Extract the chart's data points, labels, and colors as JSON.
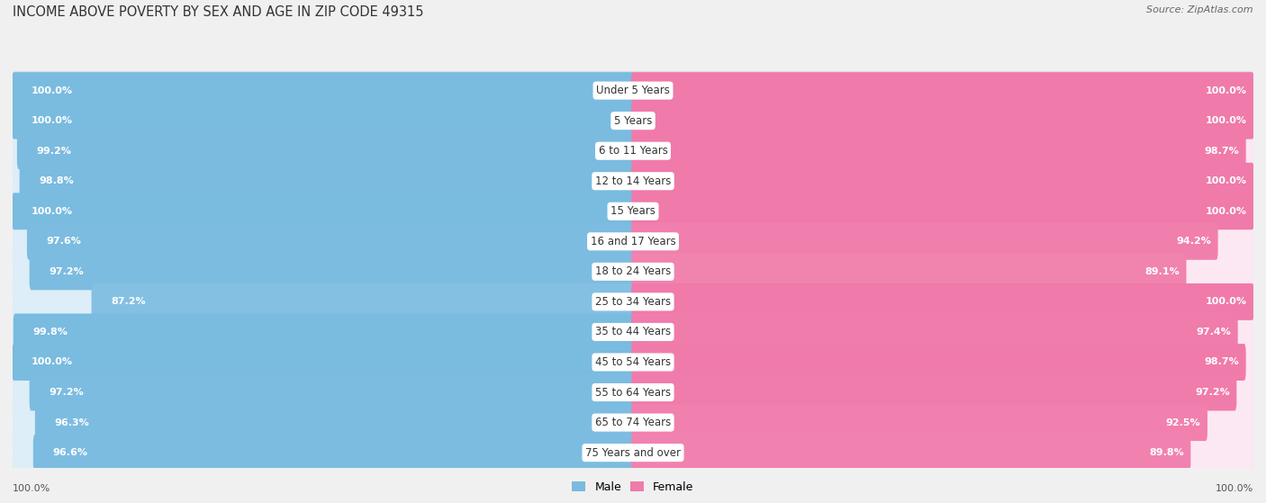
{
  "title": "INCOME ABOVE POVERTY BY SEX AND AGE IN ZIP CODE 49315",
  "source": "Source: ZipAtlas.com",
  "categories": [
    "Under 5 Years",
    "5 Years",
    "6 to 11 Years",
    "12 to 14 Years",
    "15 Years",
    "16 and 17 Years",
    "18 to 24 Years",
    "25 to 34 Years",
    "35 to 44 Years",
    "45 to 54 Years",
    "55 to 64 Years",
    "65 to 74 Years",
    "75 Years and over"
  ],
  "male_values": [
    100.0,
    100.0,
    99.2,
    98.8,
    100.0,
    97.6,
    97.2,
    87.2,
    99.8,
    100.0,
    97.2,
    96.3,
    96.6
  ],
  "female_values": [
    100.0,
    100.0,
    98.7,
    100.0,
    100.0,
    94.2,
    89.1,
    100.0,
    97.4,
    98.7,
    97.2,
    92.5,
    89.8
  ],
  "male_color_full": "#7abbe0",
  "female_color_full": "#f07aaa",
  "male_color_light": "#c5dff0",
  "female_color_light": "#f9c8dc",
  "male_bg": "#ddeef8",
  "female_bg": "#fce8f2",
  "row_bg": "#e8e8e8",
  "background_color": "#f0f0f0",
  "label_bg": "#ffffff",
  "legend_male": "Male",
  "legend_female": "Female",
  "max_value": 100.0,
  "title_fontsize": 10.5,
  "label_fontsize": 8.5,
  "value_fontsize": 8,
  "tick_fontsize": 8,
  "bottom_tick_value": "100.0%"
}
